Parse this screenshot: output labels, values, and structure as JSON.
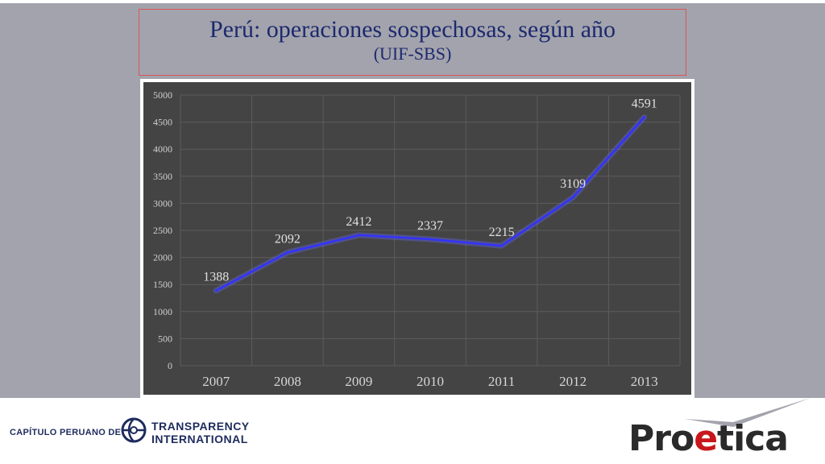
{
  "slide": {
    "title": "Perú: operaciones sospechosas, según año",
    "subtitle": "(UIF-SBS)"
  },
  "footer": {
    "capitulo": "CAPÍTULO PERUANO DE",
    "ti_line1": "TRANSPARENCY",
    "ti_line2": "INTERNATIONAL",
    "proetica_pre": "Pro",
    "proetica_accent": "e",
    "proetica_post": "tica"
  },
  "colors": {
    "background": "#a3a3ad",
    "plot_bg": "#444444",
    "line": "#3333ff",
    "title_text": "#1c2a6e",
    "brand_red": "#c8171c"
  },
  "chart_data": {
    "type": "line",
    "categories": [
      "2007",
      "2008",
      "2009",
      "2010",
      "2011",
      "2012",
      "2013"
    ],
    "series": [
      {
        "values": [
          1388,
          2092,
          2412,
          2337,
          2215,
          3109,
          4591
        ]
      }
    ],
    "data_labels": [
      "1388",
      "2092",
      "2412",
      "2337",
      "2215",
      "3109",
      "4591"
    ],
    "y_ticks": [
      "0",
      "500",
      "1000",
      "1500",
      "2000",
      "2500",
      "3000",
      "3500",
      "4000",
      "4500",
      "5000"
    ],
    "ylim": [
      0,
      5000
    ],
    "grid": true
  }
}
